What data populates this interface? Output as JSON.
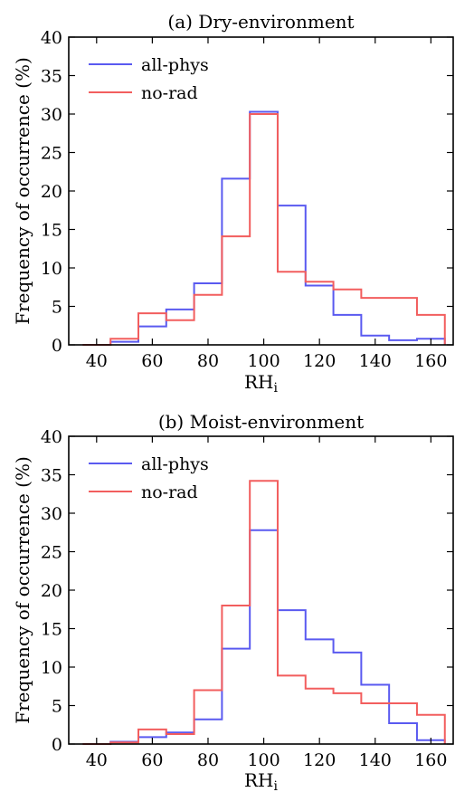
{
  "chart_data": [
    {
      "type": "step-histogram",
      "title": "(a) Dry-environment",
      "xlabel_main": "RH",
      "xlabel_sub": "i",
      "ylabel": "Frequency of occurrence (%)",
      "xlim": [
        30,
        168
      ],
      "ylim": [
        0,
        40
      ],
      "xticks": [
        40,
        60,
        80,
        100,
        120,
        140,
        160
      ],
      "yticks": [
        0,
        5,
        10,
        15,
        20,
        25,
        30,
        35,
        40
      ],
      "bin_edges": [
        35,
        45,
        55,
        65,
        75,
        85,
        95,
        105,
        115,
        125,
        135,
        145,
        155,
        165
      ],
      "grid": false,
      "legend_position": "top-left",
      "series": [
        {
          "name": "all-phys",
          "color": "#5a5af0",
          "values": [
            0.0,
            0.4,
            2.4,
            4.6,
            8.0,
            21.6,
            30.3,
            18.1,
            7.7,
            3.9,
            1.2,
            0.6,
            0.8
          ]
        },
        {
          "name": "no-rad",
          "color": "#f25e5e",
          "values": [
            0.0,
            0.8,
            4.1,
            3.2,
            6.5,
            14.1,
            30.0,
            9.5,
            8.2,
            7.2,
            6.1,
            6.1,
            3.9
          ]
        }
      ]
    },
    {
      "type": "step-histogram",
      "title": "(b) Moist-environment",
      "xlabel_main": "RH",
      "xlabel_sub": "i",
      "ylabel": "Frequency of occurrence (%)",
      "xlim": [
        30,
        168
      ],
      "ylim": [
        0,
        40
      ],
      "xticks": [
        40,
        60,
        80,
        100,
        120,
        140,
        160
      ],
      "yticks": [
        0,
        5,
        10,
        15,
        20,
        25,
        30,
        35,
        40
      ],
      "bin_edges": [
        35,
        45,
        55,
        65,
        75,
        85,
        95,
        105,
        115,
        125,
        135,
        145,
        155,
        165
      ],
      "grid": false,
      "legend_position": "top-left",
      "series": [
        {
          "name": "all-phys",
          "color": "#5a5af0",
          "values": [
            0.0,
            0.3,
            0.9,
            1.5,
            3.2,
            12.4,
            27.8,
            17.4,
            13.6,
            11.9,
            7.7,
            2.7,
            0.5
          ]
        },
        {
          "name": "no-rad",
          "color": "#f25e5e",
          "values": [
            0.0,
            0.2,
            1.9,
            1.3,
            7.0,
            18.0,
            34.2,
            8.9,
            7.2,
            6.6,
            5.3,
            5.3,
            3.8
          ]
        }
      ]
    }
  ]
}
